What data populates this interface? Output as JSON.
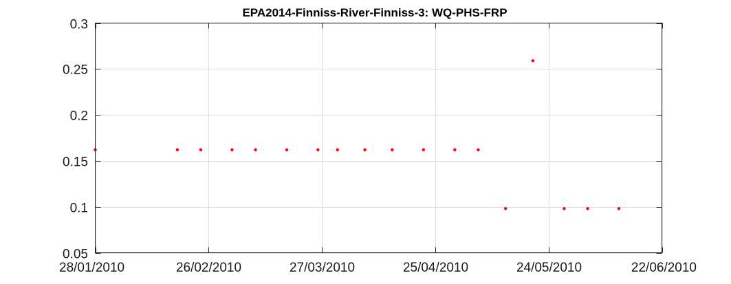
{
  "chart_data": {
    "type": "scatter",
    "title": "EPA2014-Finniss-River-Finniss-3: WQ-PHS-FRP",
    "xlabel": "",
    "ylabel": "",
    "x_axis": "date",
    "xlim": [
      "2010-01-28",
      "2010-06-22"
    ],
    "ylim": [
      0.05,
      0.3
    ],
    "x_ticks": [
      "2010-01-28",
      "2010-02-26",
      "2010-03-27",
      "2010-04-25",
      "2010-05-24",
      "2010-06-22"
    ],
    "x_tick_labels": [
      "28/01/2010",
      "26/02/2010",
      "27/03/2010",
      "25/04/2010",
      "24/05/2010",
      "22/06/2010"
    ],
    "y_ticks": [
      0.05,
      0.1,
      0.15,
      0.2,
      0.25,
      0.3
    ],
    "y_tick_labels": [
      "0.05",
      "0.1",
      "0.15",
      "0.2",
      "0.25",
      "0.3"
    ],
    "grid": true,
    "marker_color": "#ff0000",
    "points": [
      {
        "x": "2010-01-28",
        "y": 0.162
      },
      {
        "x": "2010-02-18",
        "y": 0.162
      },
      {
        "x": "2010-02-24",
        "y": 0.162
      },
      {
        "x": "2010-03-04",
        "y": 0.162
      },
      {
        "x": "2010-03-10",
        "y": 0.162
      },
      {
        "x": "2010-03-18",
        "y": 0.162
      },
      {
        "x": "2010-03-26",
        "y": 0.162
      },
      {
        "x": "2010-03-31",
        "y": 0.162
      },
      {
        "x": "2010-04-07",
        "y": 0.162
      },
      {
        "x": "2010-04-14",
        "y": 0.162
      },
      {
        "x": "2010-04-22",
        "y": 0.162
      },
      {
        "x": "2010-04-30",
        "y": 0.162
      },
      {
        "x": "2010-05-06",
        "y": 0.162
      },
      {
        "x": "2010-05-13",
        "y": 0.098
      },
      {
        "x": "2010-05-20",
        "y": 0.259
      },
      {
        "x": "2010-05-28",
        "y": 0.098
      },
      {
        "x": "2010-06-03",
        "y": 0.098
      },
      {
        "x": "2010-06-11",
        "y": 0.098
      }
    ]
  }
}
